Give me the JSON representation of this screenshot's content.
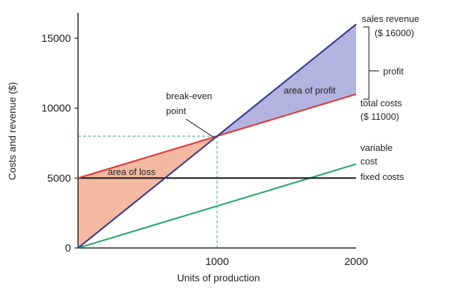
{
  "chart_data": {
    "type": "line",
    "xlabel": "Units of production",
    "ylabel": "Costs and revenue ($)",
    "xlim": [
      0,
      2000
    ],
    "ylim": [
      0,
      17000
    ],
    "x_ticks": [
      0,
      1000,
      2000
    ],
    "x_tick_labels": [
      "",
      "1000",
      "2000"
    ],
    "y_ticks": [
      0,
      5000,
      10000,
      15000
    ],
    "y_tick_labels": [
      "0",
      "5000",
      "10000",
      "15000"
    ],
    "grid": false,
    "series": [
      {
        "name": "sales revenue",
        "color": "#3b3a8f",
        "x": [
          0,
          2000
        ],
        "y": [
          0,
          16000
        ]
      },
      {
        "name": "total costs",
        "color": "#e03a3a",
        "x": [
          0,
          2000
        ],
        "y": [
          5000,
          11000
        ]
      },
      {
        "name": "fixed costs",
        "color": "#1a1a1a",
        "x": [
          0,
          2000
        ],
        "y": [
          5000,
          5000
        ]
      },
      {
        "name": "variable cost",
        "color": "#2aa86a",
        "x": [
          0,
          2000
        ],
        "y": [
          0,
          6000
        ]
      }
    ],
    "break_even": {
      "x": 1000,
      "y": 8000
    },
    "regions": {
      "loss": {
        "label": "area of loss",
        "color": "#f4b9a2"
      },
      "profit": {
        "label": "area of profit",
        "color": "#b3b3df"
      }
    },
    "annotations": {
      "sales_revenue": "sales revenue",
      "sales_revenue_value": "($ 16000)",
      "profit": "profit",
      "total_costs": "total costs",
      "total_costs_value": "($ 11000)",
      "variable_line1": "variable",
      "variable_line2": "cost",
      "fixed_costs": "fixed costs",
      "break_even_line1": "break-even",
      "break_even_line2": "point"
    }
  }
}
